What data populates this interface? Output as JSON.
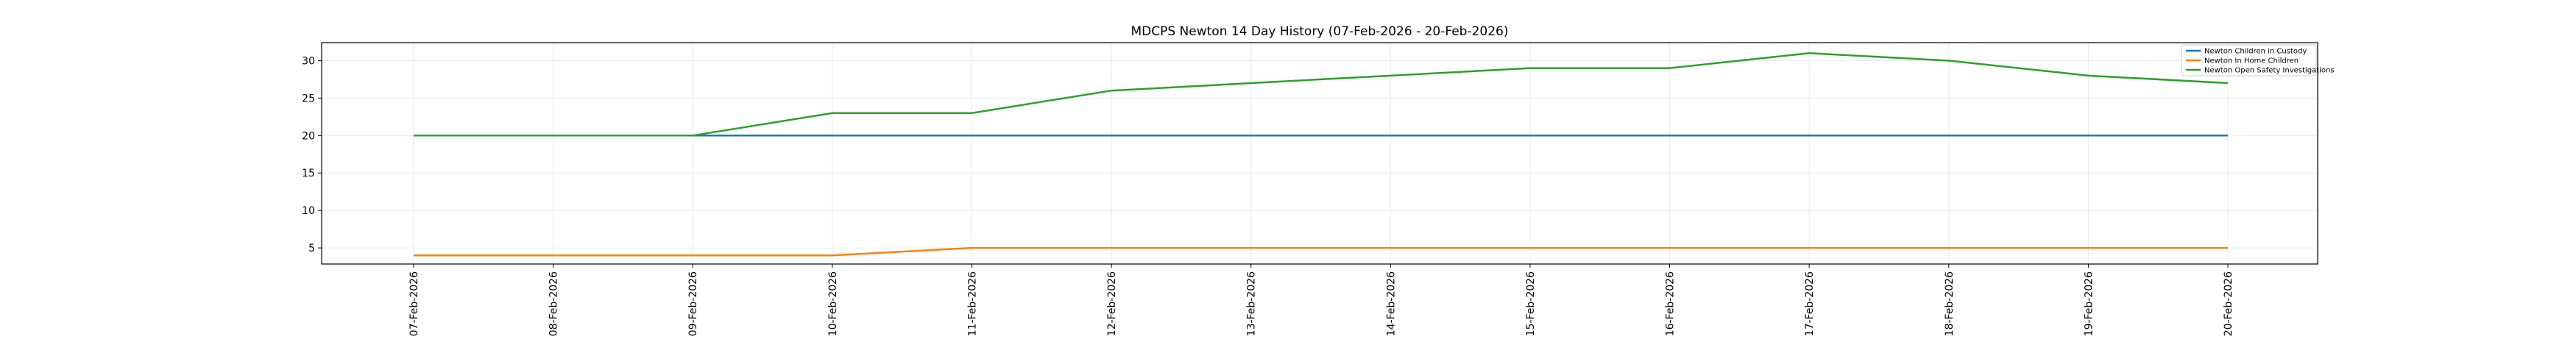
{
  "chart_data": {
    "type": "line",
    "title": "MDCPS Newton 14 Day History (07-Feb-2026 - 20-Feb-2026)",
    "xlabel": "",
    "ylabel": "",
    "categories": [
      "07-Feb-2026",
      "08-Feb-2026",
      "09-Feb-2026",
      "10-Feb-2026",
      "11-Feb-2026",
      "12-Feb-2026",
      "13-Feb-2026",
      "14-Feb-2026",
      "15-Feb-2026",
      "16-Feb-2026",
      "17-Feb-2026",
      "18-Feb-2026",
      "19-Feb-2026",
      "20-Feb-2026"
    ],
    "ylim": [
      2.85,
      32.4
    ],
    "yticks": [
      5,
      10,
      15,
      20,
      25,
      30
    ],
    "grid": true,
    "legend_position": "top-right",
    "series": [
      {
        "name": "Newton Children in Custody",
        "color": "#1f77b4",
        "values": [
          20,
          20,
          20,
          20,
          20,
          20,
          20,
          20,
          20,
          20,
          20,
          20,
          20,
          20
        ]
      },
      {
        "name": "Newton In Home Children",
        "color": "#ff7f0e",
        "values": [
          4,
          4,
          4,
          4,
          5,
          5,
          5,
          5,
          5,
          5,
          5,
          5,
          5,
          5
        ]
      },
      {
        "name": "Newton Open Safety Investigations",
        "color": "#2ca02c",
        "values": [
          20,
          20,
          20,
          23,
          23,
          26,
          27,
          28,
          29,
          29,
          31,
          30,
          28,
          27
        ]
      }
    ]
  }
}
